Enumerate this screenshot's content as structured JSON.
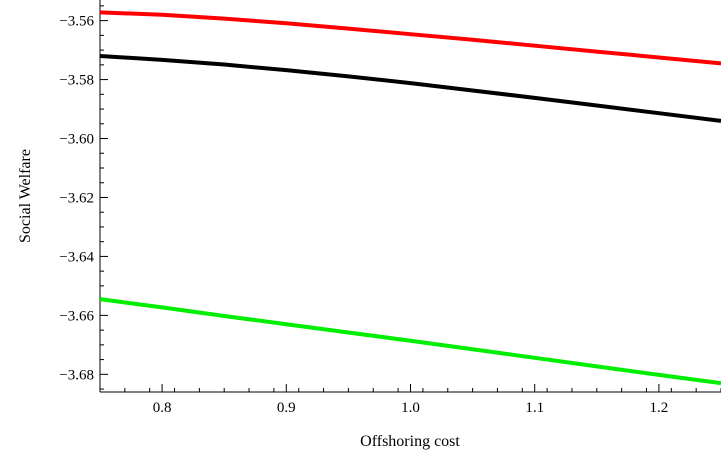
{
  "chart_data": {
    "type": "line",
    "title": "",
    "xlabel": "Offshoring  cost",
    "ylabel": "Social Welfare",
    "xlim": [
      0.75,
      1.25
    ],
    "ylim": [
      -3.686,
      -3.553
    ],
    "x_ticks": [
      0.8,
      0.9,
      1.0,
      1.1,
      1.2
    ],
    "x_tick_labels": [
      "0.8",
      "0.9",
      "1.0",
      "1.1",
      "1.2"
    ],
    "y_ticks": [
      -3.56,
      -3.58,
      -3.6,
      -3.62,
      -3.64,
      -3.66,
      -3.68
    ],
    "y_tick_labels": [
      "−3.56",
      "−3.58",
      "−3.60",
      "−3.62",
      "−3.64",
      "−3.66",
      "−3.68"
    ],
    "grid": false,
    "legend": "none",
    "x": [
      0.75,
      0.8,
      0.85,
      0.9,
      0.95,
      1.0,
      1.05,
      1.1,
      1.15,
      1.2,
      1.25
    ],
    "series": [
      {
        "color": "#ff0000",
        "values": [
          -3.5572,
          -3.558,
          -3.5593,
          -3.5609,
          -3.5627,
          -3.5646,
          -3.5665,
          -3.5685,
          -3.5705,
          -3.5725,
          -3.5745
        ]
      },
      {
        "color": "#000000",
        "values": [
          -3.572,
          -3.5733,
          -3.5749,
          -3.5768,
          -3.5789,
          -3.5812,
          -3.5837,
          -3.5862,
          -3.5888,
          -3.5914,
          -3.594
        ]
      },
      {
        "color": "#00ee00",
        "values": [
          -3.6545,
          -3.6573,
          -3.6602,
          -3.663,
          -3.6658,
          -3.6686,
          -3.6715,
          -3.6744,
          -3.6773,
          -3.6802,
          -3.683
        ]
      }
    ]
  }
}
